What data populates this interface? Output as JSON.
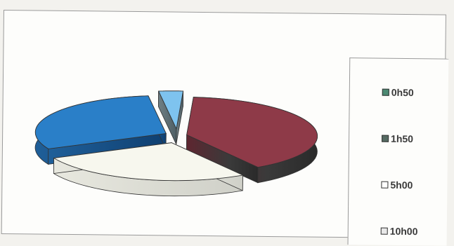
{
  "chart_data": {
    "type": "pie",
    "title": "",
    "categories": [
      "0h50",
      "1h50",
      "5h00",
      "10h00"
    ],
    "series": [
      {
        "values": [
          3,
          40,
          27,
          30
        ]
      }
    ],
    "exploded": true,
    "three_d": true,
    "legend_position": "right",
    "colors": [
      "#7ec3ef",
      "#8e3a48",
      "#f7f7ee",
      "#2a7fc8"
    ]
  }
}
